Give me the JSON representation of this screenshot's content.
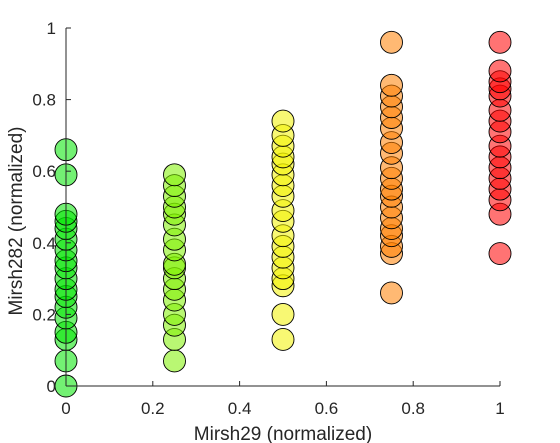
{
  "chart_data": {
    "type": "scatter",
    "title": "",
    "xlabel": "Mirsh29 (normalized)",
    "ylabel": "Mirsh282 (normalized)",
    "xlim": [
      0,
      1
    ],
    "ylim": [
      0,
      1
    ],
    "x_ticks": [
      "0",
      "0.2",
      "0.4",
      "0.6",
      "0.8",
      "1"
    ],
    "y_ticks": [
      "0",
      "0.2",
      "0.4",
      "0.6",
      "0.8",
      "1"
    ],
    "grid": false,
    "legend": "none",
    "marker_edge_color": "#000000",
    "groups": [
      {
        "x": 0,
        "color": "#00e600",
        "y": [
          0.0,
          0.07,
          0.13,
          0.15,
          0.19,
          0.22,
          0.25,
          0.27,
          0.3,
          0.33,
          0.35,
          0.38,
          0.41,
          0.44,
          0.46,
          0.48,
          0.59,
          0.66
        ]
      },
      {
        "x": 0.25,
        "color": "#7ff000",
        "y": [
          0.07,
          0.13,
          0.17,
          0.2,
          0.24,
          0.27,
          0.3,
          0.33,
          0.34,
          0.38,
          0.41,
          0.45,
          0.48,
          0.5,
          0.53,
          0.56,
          0.59
        ]
      },
      {
        "x": 0.5,
        "color": "#f2f200",
        "y": [
          0.13,
          0.2,
          0.28,
          0.3,
          0.33,
          0.36,
          0.39,
          0.42,
          0.46,
          0.49,
          0.53,
          0.56,
          0.59,
          0.62,
          0.64,
          0.67,
          0.7,
          0.74
        ]
      },
      {
        "x": 0.75,
        "color": "#ff8000",
        "y": [
          0.26,
          0.37,
          0.39,
          0.42,
          0.44,
          0.47,
          0.5,
          0.53,
          0.55,
          0.58,
          0.61,
          0.65,
          0.68,
          0.72,
          0.75,
          0.78,
          0.81,
          0.84,
          0.96
        ]
      },
      {
        "x": 1,
        "color": "#ff0000",
        "y": [
          0.37,
          0.48,
          0.52,
          0.55,
          0.58,
          0.61,
          0.64,
          0.67,
          0.71,
          0.74,
          0.77,
          0.81,
          0.83,
          0.85,
          0.88,
          0.96
        ]
      }
    ]
  }
}
